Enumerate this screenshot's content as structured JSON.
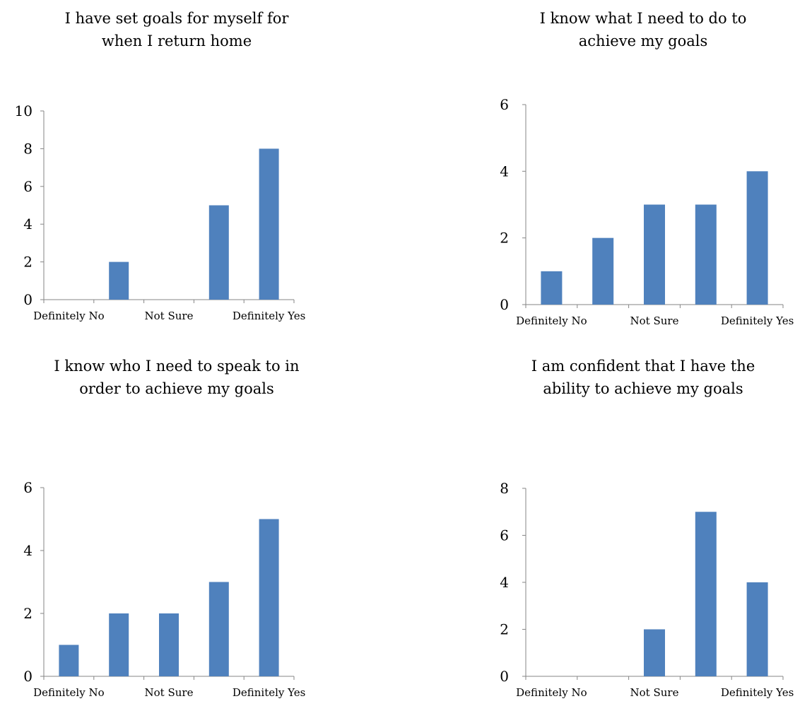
{
  "colors": {
    "bar": "#4f81bd",
    "axis": "#868686"
  },
  "chart_data": [
    {
      "type": "bar",
      "title": "I have set goals for myself for\nwhen I return home",
      "categories": [
        "Definitely No",
        "",
        "Not Sure",
        "",
        "Definitely Yes"
      ],
      "values": [
        0,
        2,
        0,
        5,
        8
      ],
      "ylim": [
        0,
        10
      ],
      "yticks": [
        0,
        2,
        4,
        6,
        8,
        10
      ],
      "xlabel": "",
      "ylabel": "",
      "grid": false,
      "legend": "none"
    },
    {
      "type": "bar",
      "title": "I know what I need to do to\nachieve my goals",
      "categories": [
        "Definitely No",
        "",
        "Not Sure",
        "",
        "Definitely Yes"
      ],
      "values": [
        1,
        2,
        3,
        3,
        4
      ],
      "ylim": [
        0,
        6
      ],
      "yticks": [
        0,
        2,
        4,
        6
      ],
      "xlabel": "",
      "ylabel": "",
      "grid": false,
      "legend": "none"
    },
    {
      "type": "bar",
      "title": "I know who I need to speak to in\norder to achieve my goals",
      "categories": [
        "Definitely No",
        "",
        "Not Sure",
        "",
        "Definitely Yes"
      ],
      "values": [
        1,
        2,
        2,
        3,
        5
      ],
      "ylim": [
        0,
        6
      ],
      "yticks": [
        0,
        2,
        4,
        6
      ],
      "xlabel": "",
      "ylabel": "",
      "grid": false,
      "legend": "none"
    },
    {
      "type": "bar",
      "title": "I am confident that I have the\nability to achieve my goals",
      "categories": [
        "Definitely No",
        "",
        "Not Sure",
        "",
        "Definitely Yes"
      ],
      "values": [
        0,
        0,
        2,
        7,
        4
      ],
      "ylim": [
        0,
        8
      ],
      "yticks": [
        0,
        2,
        4,
        6,
        8
      ],
      "xlabel": "",
      "ylabel": "",
      "grid": false,
      "legend": "none"
    }
  ]
}
